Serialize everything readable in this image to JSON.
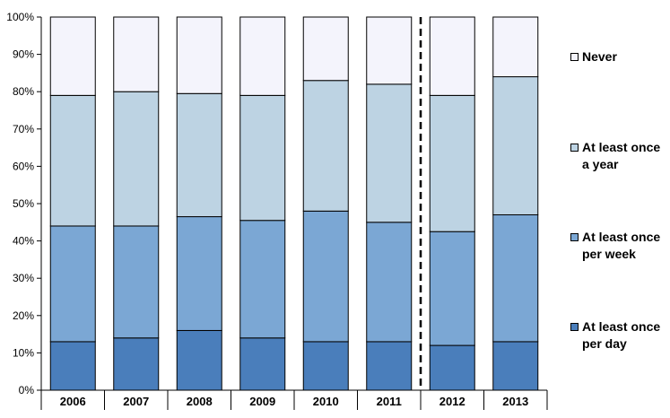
{
  "chart_data": {
    "type": "bar",
    "stacked": true,
    "categories": [
      "2006",
      "2007",
      "2008",
      "2009",
      "2010",
      "2011",
      "2012",
      "2013"
    ],
    "ylim": [
      0,
      100
    ],
    "yticks": [
      "0%",
      "10%",
      "20%",
      "30%",
      "40%",
      "50%",
      "60%",
      "70%",
      "80%",
      "90%",
      "100%"
    ],
    "series": [
      {
        "name": "At least once per day",
        "color": "#4A7EBB",
        "values": [
          13,
          14,
          16,
          14,
          13,
          13,
          12,
          13
        ]
      },
      {
        "name": "At least once per week",
        "color": "#7BA7D4",
        "values": [
          31,
          30,
          30.5,
          31.5,
          35,
          32,
          30.5,
          34
        ]
      },
      {
        "name": "At least once a year",
        "color": "#BDD3E3",
        "values": [
          35,
          36,
          33,
          33.5,
          35,
          37,
          36.5,
          37
        ]
      },
      {
        "name": "Never",
        "color": "#F4F4FC",
        "values": [
          21,
          20,
          20.5,
          21,
          17,
          18,
          21,
          16
        ]
      }
    ],
    "break_after": "2011",
    "legend_position": "right",
    "xlabel": "",
    "ylabel": ""
  }
}
